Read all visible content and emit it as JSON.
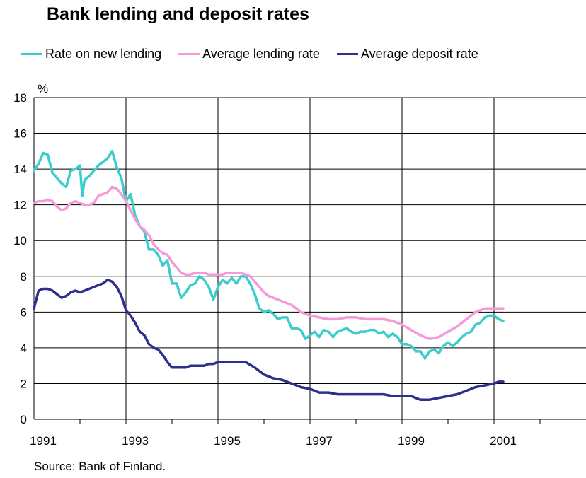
{
  "title": "Bank lending and deposit rates",
  "source": "Source: Bank of Finland.",
  "colors": {
    "rate_on_new_lending": "#3dcccc",
    "average_lending_rate": "#f59ad6",
    "average_deposit_rate": "#2e2e8f",
    "grid": "#000000"
  },
  "chart_data": {
    "type": "line",
    "title": "Bank lending and deposit rates",
    "ylabel": "%",
    "xlabel": "",
    "ylim": [
      0,
      18
    ],
    "yticks": [
      "0",
      "2",
      "4",
      "6",
      "8",
      "10",
      "12",
      "14",
      "16",
      "18"
    ],
    "xlim": [
      1991.0,
      2003.0
    ],
    "xtick_labels": [
      "1991",
      "1993",
      "1995",
      "1997",
      "1999",
      "2001"
    ],
    "year_gridlines": [
      1993,
      1995,
      1997,
      1999,
      2001
    ],
    "grid": true,
    "legend_position": "top",
    "series": [
      {
        "name": "Rate on new lending",
        "color": "#3dcccc",
        "x": [
          1991.0,
          1991.1,
          1991.2,
          1991.3,
          1991.4,
          1991.5,
          1991.6,
          1991.7,
          1991.8,
          1991.9,
          1992.0,
          1992.05,
          1992.1,
          1992.2,
          1992.3,
          1992.4,
          1992.5,
          1992.6,
          1992.7,
          1992.8,
          1992.9,
          1993.0,
          1993.1,
          1993.2,
          1993.3,
          1993.4,
          1993.5,
          1993.6,
          1993.7,
          1993.8,
          1993.9,
          1994.0,
          1994.1,
          1994.2,
          1994.3,
          1994.4,
          1994.5,
          1994.6,
          1994.7,
          1994.8,
          1994.9,
          1995.0,
          1995.1,
          1995.2,
          1995.3,
          1995.4,
          1995.5,
          1995.6,
          1995.7,
          1995.8,
          1995.9,
          1996.0,
          1996.1,
          1996.2,
          1996.3,
          1996.4,
          1996.5,
          1996.6,
          1996.7,
          1996.8,
          1996.9,
          1997.0,
          1997.1,
          1997.2,
          1997.3,
          1997.4,
          1997.5,
          1997.6,
          1997.7,
          1997.8,
          1997.9,
          1998.0,
          1998.1,
          1998.2,
          1998.3,
          1998.4,
          1998.5,
          1998.6,
          1998.7,
          1998.8,
          1998.9,
          1999.0,
          1999.1,
          1999.2,
          1999.3,
          1999.4,
          1999.5,
          1999.6,
          1999.7,
          1999.8,
          1999.9,
          2000.0,
          2000.1,
          2000.2,
          2000.3,
          2000.4,
          2000.5,
          2000.6,
          2000.7,
          2000.8,
          2000.9,
          2001.0,
          2001.1,
          2001.2
        ],
        "values": [
          13.9,
          14.3,
          14.9,
          14.8,
          13.8,
          13.5,
          13.2,
          13.0,
          13.9,
          14.0,
          14.2,
          12.5,
          13.4,
          13.6,
          13.9,
          14.2,
          14.4,
          14.6,
          15.0,
          14.1,
          13.5,
          12.2,
          12.6,
          11.4,
          10.8,
          10.5,
          9.5,
          9.5,
          9.2,
          8.6,
          8.9,
          7.6,
          7.6,
          6.8,
          7.1,
          7.5,
          7.6,
          8.0,
          7.8,
          7.4,
          6.7,
          7.4,
          7.8,
          7.6,
          7.9,
          7.6,
          8.0,
          8.0,
          7.6,
          7.0,
          6.2,
          6.0,
          6.1,
          5.9,
          5.6,
          5.7,
          5.7,
          5.1,
          5.1,
          5.0,
          4.5,
          4.7,
          4.9,
          4.6,
          5.0,
          4.9,
          4.6,
          4.9,
          5.0,
          5.1,
          4.9,
          4.8,
          4.9,
          4.9,
          5.0,
          5.0,
          4.8,
          4.9,
          4.6,
          4.8,
          4.6,
          4.2,
          4.2,
          4.1,
          3.8,
          3.8,
          3.4,
          3.8,
          3.9,
          3.7,
          4.1,
          4.3,
          4.1,
          4.3,
          4.6,
          4.8,
          4.9,
          5.3,
          5.4,
          5.7,
          5.8,
          5.8,
          5.6,
          5.5
        ]
      },
      {
        "name": "Average lending rate",
        "color": "#f59ad6",
        "x": [
          1991.0,
          1991.1,
          1991.2,
          1991.3,
          1991.4,
          1991.5,
          1991.6,
          1991.7,
          1991.8,
          1991.9,
          1992.0,
          1992.1,
          1992.2,
          1992.3,
          1992.4,
          1992.5,
          1992.6,
          1992.7,
          1992.8,
          1992.9,
          1993.0,
          1993.1,
          1993.2,
          1993.3,
          1993.4,
          1993.5,
          1993.6,
          1993.7,
          1993.8,
          1993.9,
          1994.0,
          1994.1,
          1994.2,
          1994.3,
          1994.4,
          1994.5,
          1994.6,
          1994.7,
          1994.8,
          1994.9,
          1995.0,
          1995.1,
          1995.2,
          1995.3,
          1995.4,
          1995.5,
          1995.6,
          1995.7,
          1995.8,
          1995.9,
          1996.0,
          1996.1,
          1996.2,
          1996.3,
          1996.4,
          1996.5,
          1996.6,
          1996.7,
          1996.8,
          1996.9,
          1997.0,
          1997.2,
          1997.4,
          1997.6,
          1997.8,
          1998.0,
          1998.2,
          1998.4,
          1998.6,
          1998.8,
          1999.0,
          1999.2,
          1999.4,
          1999.6,
          1999.8,
          2000.0,
          2000.2,
          2000.4,
          2000.6,
          2000.8,
          2001.0,
          2001.1,
          2001.2
        ],
        "values": [
          12.1,
          12.2,
          12.2,
          12.3,
          12.2,
          11.9,
          11.7,
          11.8,
          12.1,
          12.2,
          12.1,
          12.0,
          12.0,
          12.1,
          12.5,
          12.6,
          12.7,
          13.0,
          12.9,
          12.6,
          12.2,
          11.7,
          11.2,
          10.8,
          10.6,
          10.3,
          9.8,
          9.5,
          9.3,
          9.2,
          8.8,
          8.5,
          8.2,
          8.1,
          8.1,
          8.2,
          8.2,
          8.2,
          8.1,
          8.1,
          8.1,
          8.1,
          8.2,
          8.2,
          8.2,
          8.2,
          8.1,
          8.0,
          7.7,
          7.4,
          7.1,
          6.9,
          6.8,
          6.7,
          6.6,
          6.5,
          6.4,
          6.2,
          6.0,
          5.9,
          5.8,
          5.7,
          5.6,
          5.6,
          5.7,
          5.7,
          5.6,
          5.6,
          5.6,
          5.5,
          5.3,
          5.0,
          4.7,
          4.5,
          4.6,
          4.9,
          5.2,
          5.6,
          6.0,
          6.2,
          6.2,
          6.2,
          6.2
        ]
      },
      {
        "name": "Average deposit rate",
        "color": "#2e2e8f",
        "x": [
          1991.0,
          1991.1,
          1991.2,
          1991.3,
          1991.4,
          1991.5,
          1991.6,
          1991.7,
          1991.8,
          1991.9,
          1992.0,
          1992.1,
          1992.2,
          1992.3,
          1992.4,
          1992.5,
          1992.6,
          1992.7,
          1992.8,
          1992.9,
          1993.0,
          1993.1,
          1993.2,
          1993.3,
          1993.4,
          1993.5,
          1993.6,
          1993.7,
          1993.8,
          1993.9,
          1994.0,
          1994.1,
          1994.2,
          1994.3,
          1994.4,
          1994.5,
          1994.6,
          1994.7,
          1994.8,
          1994.9,
          1995.0,
          1995.2,
          1995.4,
          1995.6,
          1995.8,
          1996.0,
          1996.2,
          1996.4,
          1996.6,
          1996.8,
          1997.0,
          1997.2,
          1997.4,
          1997.6,
          1997.8,
          1998.0,
          1998.2,
          1998.4,
          1998.6,
          1998.8,
          1999.0,
          1999.2,
          1999.4,
          1999.6,
          1999.8,
          2000.0,
          2000.2,
          2000.4,
          2000.6,
          2000.8,
          2001.0,
          2001.1,
          2001.2
        ],
        "values": [
          6.2,
          7.2,
          7.3,
          7.3,
          7.2,
          7.0,
          6.8,
          6.9,
          7.1,
          7.2,
          7.1,
          7.2,
          7.3,
          7.4,
          7.5,
          7.6,
          7.8,
          7.7,
          7.4,
          6.9,
          6.1,
          5.8,
          5.4,
          4.9,
          4.7,
          4.2,
          4.0,
          3.9,
          3.6,
          3.2,
          2.9,
          2.9,
          2.9,
          2.9,
          3.0,
          3.0,
          3.0,
          3.0,
          3.1,
          3.1,
          3.2,
          3.2,
          3.2,
          3.2,
          2.9,
          2.5,
          2.3,
          2.2,
          2.0,
          1.8,
          1.7,
          1.5,
          1.5,
          1.4,
          1.4,
          1.4,
          1.4,
          1.4,
          1.4,
          1.3,
          1.3,
          1.3,
          1.1,
          1.1,
          1.2,
          1.3,
          1.4,
          1.6,
          1.8,
          1.9,
          2.0,
          2.1,
          2.1
        ]
      }
    ]
  }
}
